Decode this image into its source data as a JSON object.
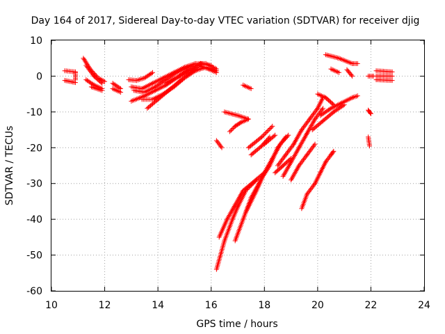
{
  "chart_data": {
    "type": "scatter",
    "title": "Day 164 of 2017, Sidereal Day-to-day VTEC variation (SDTVAR) for receiver djig",
    "xlabel": "GPS time / hours",
    "ylabel": "SDTVAR / TECUs",
    "xlim": [
      10,
      24
    ],
    "ylim": [
      -60,
      10
    ],
    "xticks": [
      "10",
      "12",
      "14",
      "16",
      "18",
      "20",
      "22",
      "24"
    ],
    "yticks": [
      "10",
      "0",
      "-10",
      "-20",
      "-30",
      "-40",
      "-50",
      "-60"
    ],
    "grid": true,
    "marker": "+",
    "color": "#ff0000",
    "segments": [
      [
        [
          10.5,
          1.5
        ],
        [
          10.9,
          1.2
        ]
      ],
      [
        [
          10.5,
          -1.2
        ],
        [
          10.9,
          -1.8
        ]
      ],
      [
        [
          10.9,
          1.0
        ],
        [
          10.9,
          -1.0
        ]
      ],
      [
        [
          11.2,
          5.0
        ],
        [
          11.45,
          2.0
        ],
        [
          11.75,
          -0.5
        ],
        [
          12.0,
          -1.5
        ]
      ],
      [
        [
          11.3,
          3.0
        ],
        [
          11.6,
          0.0
        ],
        [
          11.9,
          -2.0
        ]
      ],
      [
        [
          11.3,
          -1.0
        ],
        [
          11.6,
          -2.5
        ],
        [
          11.9,
          -3.5
        ]
      ],
      [
        [
          11.5,
          -3.0
        ],
        [
          11.9,
          -4.0
        ]
      ],
      [
        [
          12.3,
          -2.0
        ],
        [
          12.6,
          -3.5
        ]
      ],
      [
        [
          12.3,
          -3.5
        ],
        [
          12.6,
          -4.5
        ]
      ],
      [
        [
          12.9,
          -1.0
        ],
        [
          13.2,
          -1.2
        ],
        [
          13.5,
          -0.5
        ],
        [
          13.8,
          1.0
        ]
      ],
      [
        [
          13.0,
          -3.0
        ],
        [
          13.4,
          -3.5
        ],
        [
          13.8,
          -2.0
        ],
        [
          14.2,
          -0.5
        ],
        [
          14.6,
          1.0
        ],
        [
          15.0,
          2.5
        ],
        [
          15.4,
          3.5
        ],
        [
          15.8,
          3.5
        ],
        [
          16.2,
          2.0
        ]
      ],
      [
        [
          13.1,
          -4.0
        ],
        [
          13.5,
          -4.5
        ],
        [
          13.9,
          -3.0
        ],
        [
          14.3,
          -1.0
        ],
        [
          14.7,
          1.0
        ],
        [
          15.1,
          2.5
        ],
        [
          15.5,
          3.0
        ],
        [
          15.9,
          2.0
        ],
        [
          16.2,
          1.0
        ]
      ],
      [
        [
          13.4,
          -6.5
        ],
        [
          13.8,
          -6.5
        ],
        [
          14.2,
          -5.0
        ],
        [
          14.6,
          -3.0
        ],
        [
          15.0,
          -0.5
        ],
        [
          15.4,
          1.5
        ],
        [
          15.8,
          2.5
        ],
        [
          16.2,
          1.5
        ]
      ],
      [
        [
          13.0,
          -7.0
        ],
        [
          13.5,
          -5.5
        ],
        [
          13.9,
          -4.0
        ],
        [
          14.3,
          -2.5
        ],
        [
          14.7,
          -0.5
        ],
        [
          15.1,
          1.5
        ],
        [
          15.5,
          2.0
        ]
      ],
      [
        [
          13.6,
          -9.0
        ],
        [
          14.0,
          -6.5
        ],
        [
          14.4,
          -4.0
        ],
        [
          14.8,
          -1.5
        ],
        [
          15.2,
          1.0
        ],
        [
          15.5,
          2.5
        ]
      ],
      [
        [
          14.3,
          -2.0
        ],
        [
          14.8,
          0.0
        ],
        [
          15.2,
          2.0
        ],
        [
          15.6,
          3.5
        ],
        [
          16.0,
          3.0
        ]
      ],
      [
        [
          16.5,
          -10.0
        ],
        [
          17.0,
          -11.0
        ],
        [
          17.4,
          -12.0
        ]
      ],
      [
        [
          16.7,
          -15.5
        ],
        [
          16.9,
          -14.0
        ],
        [
          17.1,
          -13.0
        ],
        [
          17.4,
          -12.0
        ]
      ],
      [
        [
          16.2,
          -18.0
        ],
        [
          16.4,
          -20.0
        ]
      ],
      [
        [
          17.2,
          -2.5
        ],
        [
          17.5,
          -3.5
        ]
      ],
      [
        [
          17.4,
          -20.0
        ],
        [
          17.9,
          -17.0
        ],
        [
          18.3,
          -14.0
        ]
      ],
      [
        [
          17.5,
          -22.0
        ],
        [
          17.9,
          -19.5
        ],
        [
          18.2,
          -17.0
        ]
      ],
      [
        [
          18.0,
          -19.0
        ],
        [
          18.4,
          -16.5
        ]
      ],
      [
        [
          16.3,
          -45.0
        ],
        [
          16.6,
          -40.0
        ],
        [
          16.9,
          -36.0
        ],
        [
          17.2,
          -32.0
        ],
        [
          17.6,
          -29.5
        ],
        [
          18.0,
          -27.0
        ]
      ],
      [
        [
          16.2,
          -54.0
        ],
        [
          16.5,
          -46.0
        ],
        [
          16.8,
          -40.0
        ],
        [
          17.0,
          -36.5
        ],
        [
          17.3,
          -32.0
        ],
        [
          17.7,
          -29.0
        ]
      ],
      [
        [
          16.9,
          -46.0
        ],
        [
          17.2,
          -40.0
        ],
        [
          17.5,
          -34.0
        ],
        [
          17.9,
          -28.5
        ],
        [
          18.2,
          -25.0
        ],
        [
          18.5,
          -20.0
        ],
        [
          18.8,
          -17.0
        ]
      ],
      [
        [
          17.3,
          -38.0
        ],
        [
          17.7,
          -32.0
        ],
        [
          18.0,
          -27.0
        ],
        [
          18.3,
          -23.0
        ],
        [
          18.6,
          -19.0
        ],
        [
          18.9,
          -16.5
        ]
      ],
      [
        [
          18.5,
          -25.0
        ],
        [
          18.8,
          -22.0
        ],
        [
          19.1,
          -19.0
        ],
        [
          19.4,
          -15.0
        ],
        [
          19.7,
          -12.0
        ],
        [
          20.0,
          -9.0
        ],
        [
          20.2,
          -6.0
        ]
      ],
      [
        [
          18.7,
          -28.0
        ],
        [
          19.0,
          -24.0
        ],
        [
          19.3,
          -20.0
        ],
        [
          19.6,
          -16.0
        ],
        [
          19.9,
          -12.0
        ],
        [
          20.2,
          -9.0
        ]
      ],
      [
        [
          18.4,
          -27.0
        ],
        [
          18.7,
          -25.0
        ],
        [
          19.0,
          -23.0
        ]
      ],
      [
        [
          19.0,
          -29.0
        ],
        [
          19.3,
          -25.0
        ],
        [
          19.6,
          -22.0
        ],
        [
          19.9,
          -19.0
        ]
      ],
      [
        [
          19.4,
          -37.0
        ],
        [
          19.6,
          -33.0
        ],
        [
          19.9,
          -30.0
        ],
        [
          20.1,
          -27.0
        ],
        [
          20.3,
          -24.0
        ],
        [
          20.5,
          -22.0
        ],
        [
          20.6,
          -21.0
        ]
      ],
      [
        [
          20.0,
          -5.0
        ],
        [
          20.3,
          -6.0
        ],
        [
          20.6,
          -8.0
        ]
      ],
      [
        [
          20.1,
          -11.0
        ],
        [
          20.5,
          -9.0
        ],
        [
          20.9,
          -7.5
        ],
        [
          21.3,
          -6.0
        ],
        [
          21.5,
          -5.5
        ]
      ],
      [
        [
          19.8,
          -15.0
        ],
        [
          20.2,
          -12.5
        ],
        [
          20.6,
          -10.0
        ],
        [
          21.0,
          -8.0
        ]
      ],
      [
        [
          20.3,
          6.0
        ],
        [
          20.8,
          5.0
        ],
        [
          21.3,
          3.5
        ],
        [
          21.5,
          3.5
        ]
      ],
      [
        [
          20.5,
          2.0
        ],
        [
          20.8,
          1.0
        ]
      ],
      [
        [
          21.1,
          1.8
        ],
        [
          21.3,
          0.0
        ]
      ],
      [
        [
          21.9,
          0.0
        ],
        [
          22.1,
          0.0
        ]
      ],
      [
        [
          21.9,
          -9.5
        ],
        [
          22.0,
          -10.5
        ]
      ],
      [
        [
          21.9,
          -17.0
        ],
        [
          21.95,
          -19.5
        ]
      ],
      [
        [
          22.2,
          1.5
        ],
        [
          22.8,
          1.2
        ]
      ],
      [
        [
          22.2,
          0.0
        ],
        [
          22.8,
          0.0
        ]
      ],
      [
        [
          22.2,
          -1.0
        ],
        [
          22.8,
          -1.2
        ]
      ]
    ]
  }
}
